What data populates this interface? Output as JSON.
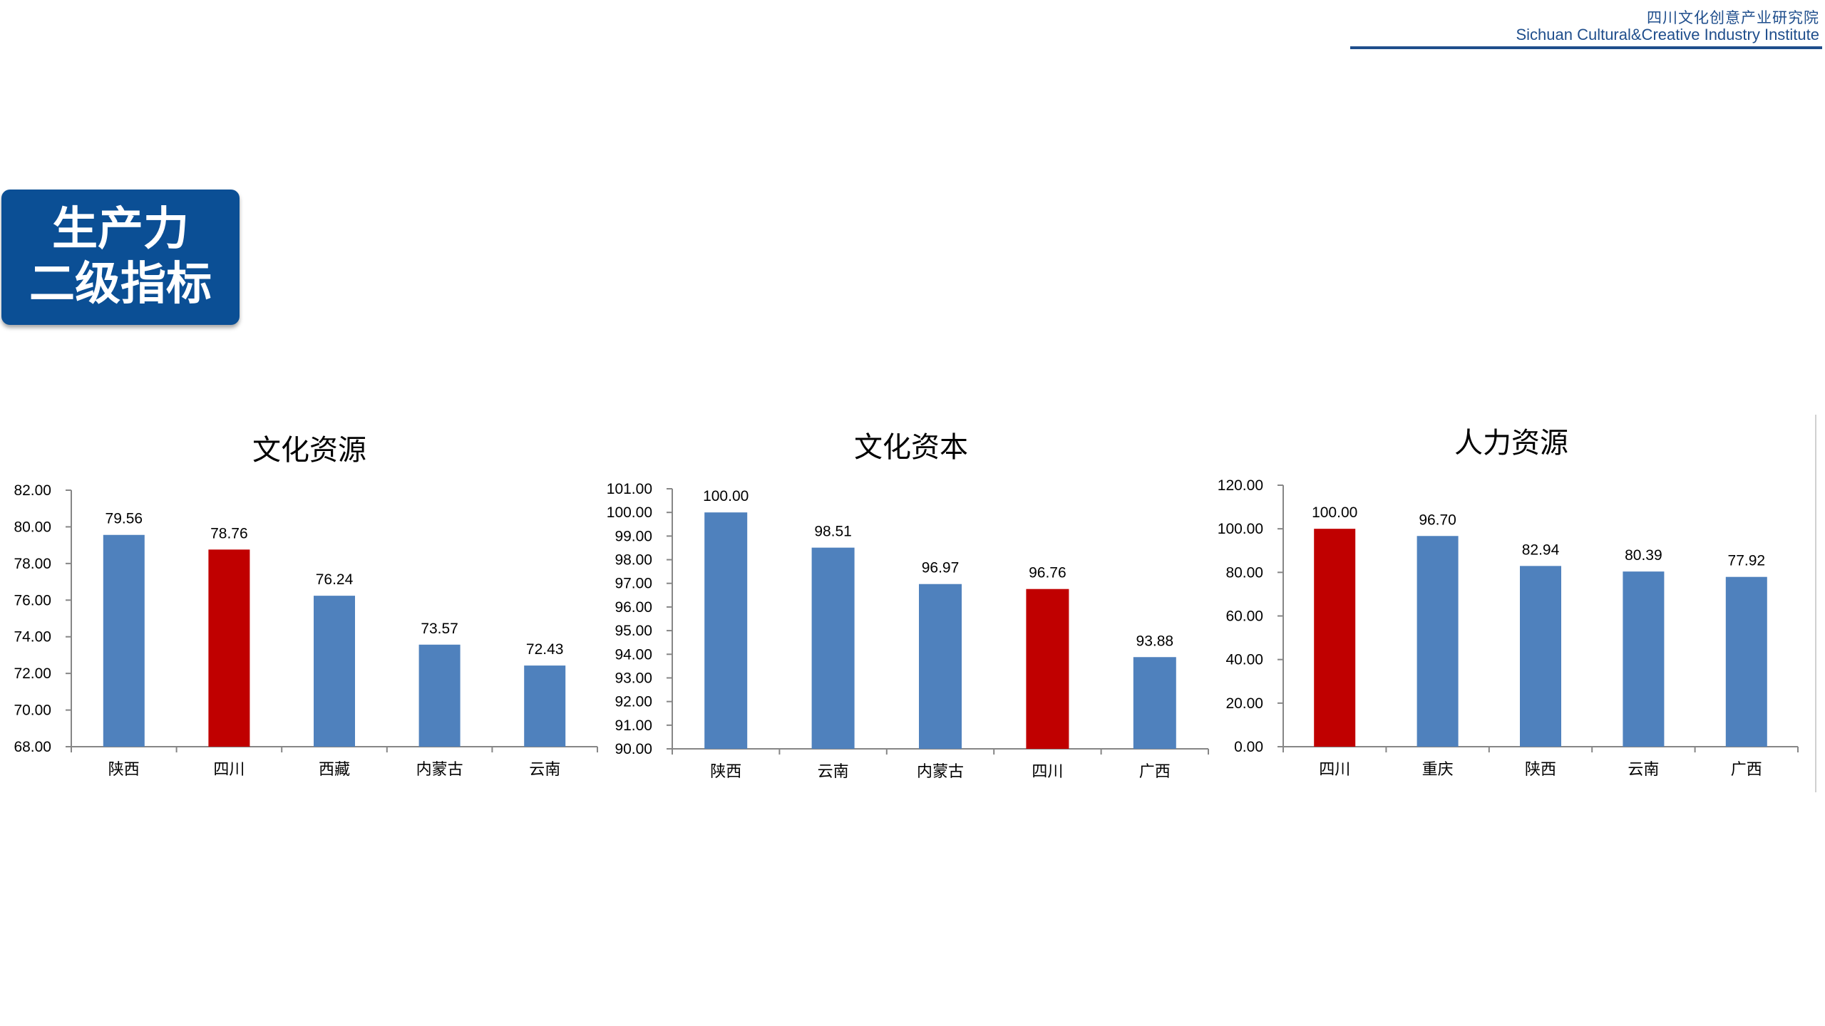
{
  "header": {
    "org_cn": "四川文化创意产业研究院",
    "org_en": "Sichuan Cultural&Creative Industry Institute"
  },
  "title_box": {
    "line1": "生产力",
    "line2": "二级指标"
  },
  "colors": {
    "bar_default": "#4f81bd",
    "bar_highlight": "#c00000",
    "brand_blue": "#0b4f95"
  },
  "chart_data": [
    {
      "type": "bar",
      "title": "文化资源",
      "categories": [
        "陕西",
        "四川",
        "西藏",
        "内蒙古",
        "云南"
      ],
      "values": [
        79.56,
        78.76,
        76.24,
        73.57,
        72.43
      ],
      "value_labels": [
        "79.56",
        "78.76",
        "76.24",
        "73.57",
        "72.43"
      ],
      "highlight_category": "四川",
      "ylim": [
        68,
        82
      ],
      "yticks": [
        "68.00",
        "70.00",
        "72.00",
        "74.00",
        "76.00",
        "78.00",
        "80.00",
        "82.00"
      ],
      "xlabel": "",
      "ylabel": "",
      "grid": false,
      "legend": "none"
    },
    {
      "type": "bar",
      "title": "文化资本",
      "categories": [
        "陕西",
        "云南",
        "内蒙古",
        "四川",
        "广西"
      ],
      "values": [
        100.0,
        98.51,
        96.97,
        96.76,
        93.88
      ],
      "value_labels": [
        "100.00",
        "98.51",
        "96.97",
        "96.76",
        "93.88"
      ],
      "highlight_category": "四川",
      "ylim": [
        90,
        101
      ],
      "yticks": [
        "90.00",
        "91.00",
        "92.00",
        "93.00",
        "94.00",
        "95.00",
        "96.00",
        "97.00",
        "98.00",
        "99.00",
        "100.00",
        "101.00"
      ],
      "xlabel": "",
      "ylabel": "",
      "grid": false,
      "legend": "none"
    },
    {
      "type": "bar",
      "title": "人力资源",
      "categories": [
        "四川",
        "重庆",
        "陕西",
        "云南",
        "广西"
      ],
      "values": [
        100.0,
        96.7,
        82.94,
        80.39,
        77.92
      ],
      "value_labels": [
        "100.00",
        "96.70",
        "82.94",
        "80.39",
        "77.92"
      ],
      "highlight_category": "四川",
      "ylim": [
        0,
        120
      ],
      "yticks": [
        "0.00",
        "20.00",
        "40.00",
        "60.00",
        "80.00",
        "100.00",
        "120.00"
      ],
      "xlabel": "",
      "ylabel": "",
      "grid": false,
      "legend": "none"
    }
  ]
}
